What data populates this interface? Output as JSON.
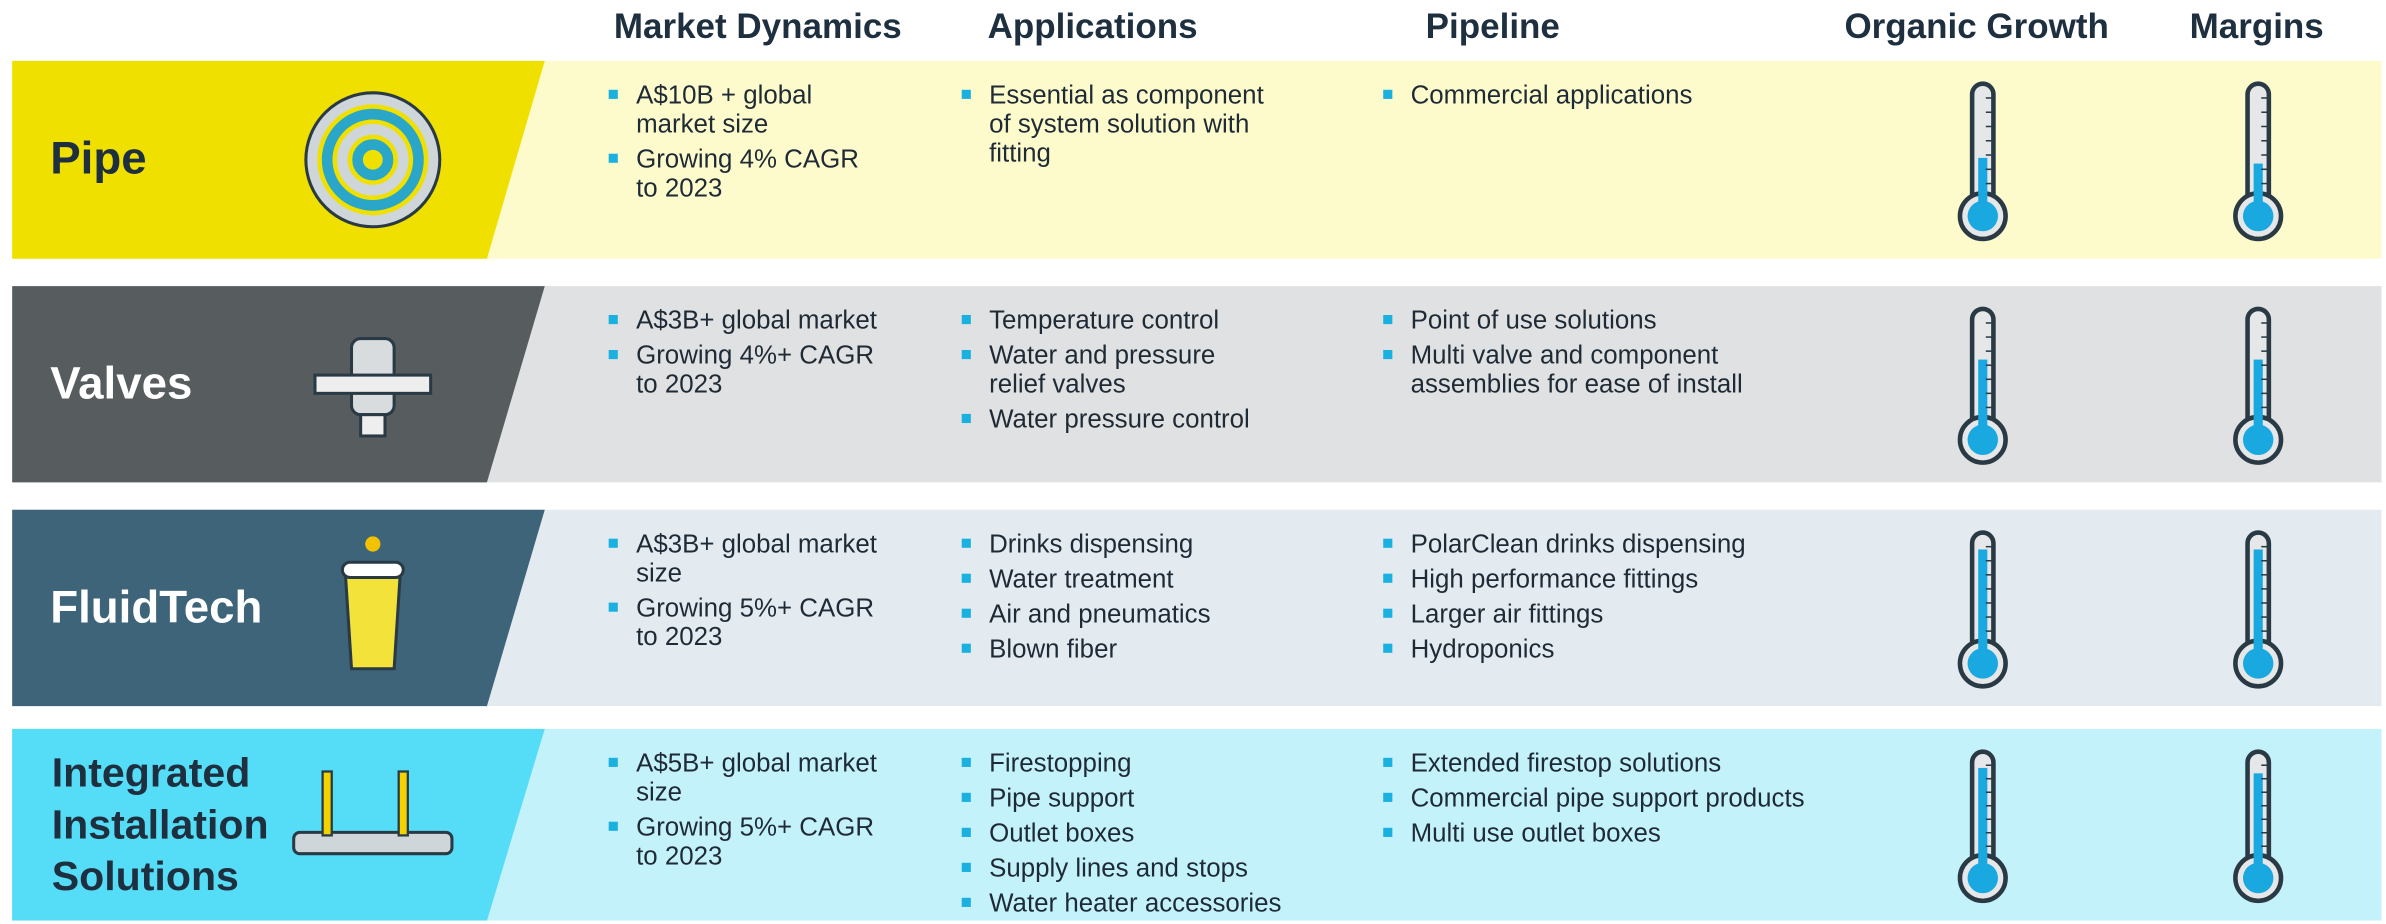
{
  "headers": [
    "Market Dynamics",
    "Applications",
    "Pipeline",
    "Organic Growth",
    "Margins"
  ],
  "rows": [
    {
      "label": "Pipe",
      "market": [
        "A$10B + global\nmarket size",
        "Growing 4% CAGR\nto 2023"
      ],
      "applications": [
        "Essential as component\nof system solution with\nfitting"
      ],
      "pipeline": [
        "Commercial applications"
      ],
      "organic_growth": 35,
      "margins": 30
    },
    {
      "label": "Valves",
      "market": [
        "A$3B+ global market",
        "Growing 4%+ CAGR\nto 2023"
      ],
      "applications": [
        "Temperature control",
        "Water and pressure\nrelief valves",
        "Water pressure control"
      ],
      "pipeline": [
        "Point of use solutions",
        "Multi valve and component\nassemblies for ease of install"
      ],
      "organic_growth": 55,
      "margins": 55
    },
    {
      "label": "FluidTech",
      "market": [
        "A$3B+ global market\nsize",
        "Growing 5%+ CAGR\nto 2023"
      ],
      "applications": [
        "Drinks dispensing",
        "Water treatment",
        "Air and pneumatics",
        "Blown fiber"
      ],
      "pipeline": [
        "PolarClean drinks dispensing",
        "High performance fittings",
        "Larger air fittings",
        "Hydroponics"
      ],
      "organic_growth": 85,
      "margins": 85
    },
    {
      "label": "Integrated\nInstallation\nSolutions",
      "market": [
        "A$5B+ global market\nsize",
        "Growing 5%+ CAGR\nto 2023"
      ],
      "applications": [
        "Firestopping",
        "Pipe support",
        "Outlet boxes",
        "Supply lines and stops",
        "Water heater accessories"
      ],
      "pipeline": [
        "Extended firestop solutions",
        "Commercial pipe support products",
        "Multi use outlet boxes"
      ],
      "organic_growth": 85,
      "margins": 80
    }
  ]
}
